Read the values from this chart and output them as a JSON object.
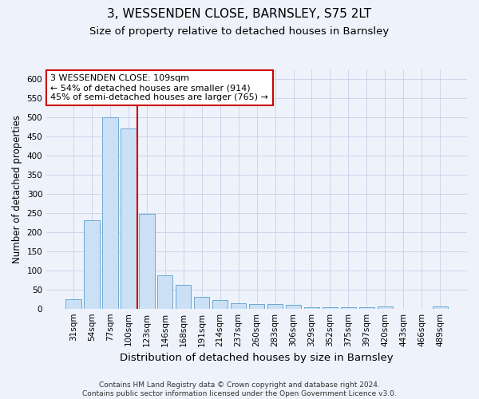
{
  "title": "3, WESSENDEN CLOSE, BARNSLEY, S75 2LT",
  "subtitle": "Size of property relative to detached houses in Barnsley",
  "xlabel": "Distribution of detached houses by size in Barnsley",
  "ylabel": "Number of detached properties",
  "categories": [
    "31sqm",
    "54sqm",
    "77sqm",
    "100sqm",
    "123sqm",
    "146sqm",
    "168sqm",
    "191sqm",
    "214sqm",
    "237sqm",
    "260sqm",
    "283sqm",
    "306sqm",
    "329sqm",
    "352sqm",
    "375sqm",
    "397sqm",
    "420sqm",
    "443sqm",
    "466sqm",
    "489sqm"
  ],
  "values": [
    25,
    232,
    500,
    472,
    248,
    88,
    62,
    30,
    23,
    15,
    12,
    11,
    9,
    4,
    3,
    3,
    3,
    6,
    0,
    0,
    5
  ],
  "bar_color": "#cce0f5",
  "bar_edge_color": "#6aaad4",
  "vline_color": "#cc0000",
  "vline_x_index": 3.5,
  "annotation_text": "3 WESSENDEN CLOSE: 109sqm\n← 54% of detached houses are smaller (914)\n45% of semi-detached houses are larger (765) →",
  "annotation_box_facecolor": "#ffffff",
  "annotation_box_edgecolor": "#cc0000",
  "ylim": [
    0,
    625
  ],
  "yticks": [
    0,
    50,
    100,
    150,
    200,
    250,
    300,
    350,
    400,
    450,
    500,
    550,
    600
  ],
  "footer": "Contains HM Land Registry data © Crown copyright and database right 2024.\nContains public sector information licensed under the Open Government Licence v3.0.",
  "background_color": "#eef2fb",
  "plot_background": "#eef2fb",
  "grid_color": "#c8d0e8",
  "title_fontsize": 11,
  "subtitle_fontsize": 9.5,
  "xlabel_fontsize": 9.5,
  "ylabel_fontsize": 8.5,
  "tick_fontsize": 7.5,
  "annotation_fontsize": 8,
  "footer_fontsize": 6.5
}
